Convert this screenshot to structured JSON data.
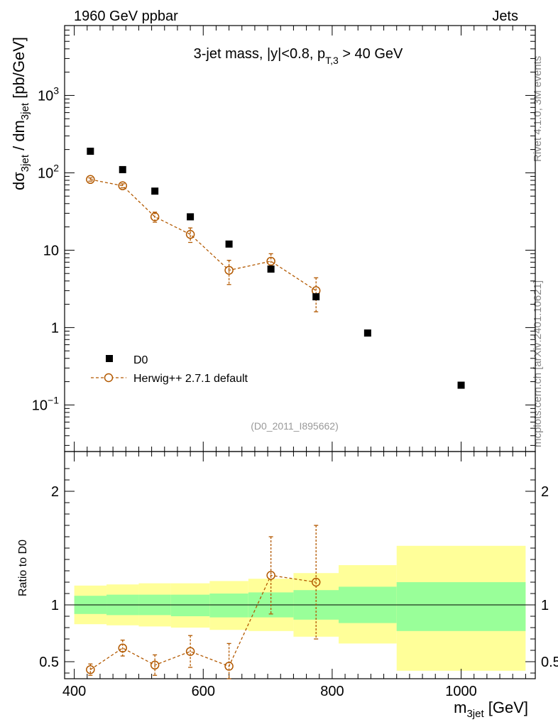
{
  "header": {
    "left": "1960 GeV ppbar",
    "right": "Jets"
  },
  "side_labels": {
    "rivet": "Rivet 4.1.0,  3M events",
    "mcplots": "mcplots.cern.ch [arXiv:2401.10621]"
  },
  "chart_data": [
    {
      "type": "scatter",
      "panel": "main",
      "title": "3-jet mass, |y|<0.8, p_T,3 > 40 GeV",
      "analysis_id": "(D0_2011_I895662)",
      "ylabel": "dσ_3jet / dm_3jet [pb/GeV]",
      "yscale": "log",
      "ylim": [
        0.025,
        8000
      ],
      "xlim": [
        385,
        1115
      ],
      "yticks": [
        0.1,
        1,
        10,
        100,
        1000
      ],
      "ytick_labels": [
        "10^-1",
        "1",
        "10",
        "10^2",
        "10^3"
      ],
      "legend_position": "lower-left",
      "series": [
        {
          "name": "D0",
          "marker": "filled-square",
          "color": "#000000",
          "x": [
            425,
            475,
            525,
            580,
            640,
            705,
            775,
            855,
            1000
          ],
          "y": [
            190,
            110,
            58,
            27,
            12,
            5.7,
            2.5,
            0.85,
            0.18
          ]
        },
        {
          "name": "Herwig++ 2.7.1 default",
          "marker": "open-circle",
          "line": "dashed",
          "color": "#b35900",
          "x": [
            425,
            475,
            525,
            580,
            640,
            705,
            775
          ],
          "y": [
            82,
            68,
            27,
            16,
            5.5,
            7.2,
            3.0
          ],
          "yerr_low": [
            4,
            4,
            4,
            3.4,
            1.9,
            1.8,
            1.4
          ],
          "yerr_high": [
            4,
            4,
            4,
            3.4,
            1.9,
            1.8,
            1.4
          ]
        }
      ]
    },
    {
      "type": "scatter",
      "panel": "ratio",
      "ylabel": "Ratio to D0",
      "xlabel": "m_3jet [GeV]",
      "ylim": [
        0.35,
        2.35
      ],
      "xlim": [
        385,
        1115
      ],
      "xticks": [
        400,
        600,
        800,
        1000
      ],
      "yticks": [
        0.5,
        1,
        2
      ],
      "ytick_labels": [
        "0.5",
        "1",
        "2"
      ],
      "bands": {
        "bin_edges": [
          400,
          450,
          500,
          550,
          610,
          670,
          740,
          810,
          900,
          1100
        ],
        "inner_low": [
          0.92,
          0.91,
          0.91,
          0.9,
          0.89,
          0.89,
          0.87,
          0.84,
          0.77
        ],
        "inner_high": [
          1.08,
          1.09,
          1.09,
          1.09,
          1.1,
          1.11,
          1.13,
          1.16,
          1.2
        ],
        "outer_low": [
          0.83,
          0.82,
          0.81,
          0.8,
          0.78,
          0.77,
          0.72,
          0.66,
          0.42
        ],
        "outer_high": [
          1.17,
          1.18,
          1.19,
          1.19,
          1.21,
          1.23,
          1.28,
          1.35,
          1.52
        ],
        "inner_color": "#99ff99",
        "outer_color": "#ffff99"
      },
      "series": [
        {
          "name": "Herwig++ 2.7.1 default",
          "marker": "open-circle",
          "line": "dashed",
          "color": "#b35900",
          "x": [
            425,
            475,
            525,
            580,
            640,
            705,
            775
          ],
          "y": [
            0.43,
            0.62,
            0.47,
            0.59,
            0.46,
            1.26,
            1.2
          ],
          "yerr_low": [
            0.05,
            0.07,
            0.09,
            0.14,
            0.2,
            0.34,
            0.5
          ],
          "yerr_high": [
            0.05,
            0.07,
            0.09,
            0.14,
            0.2,
            0.34,
            0.5
          ]
        }
      ]
    }
  ]
}
